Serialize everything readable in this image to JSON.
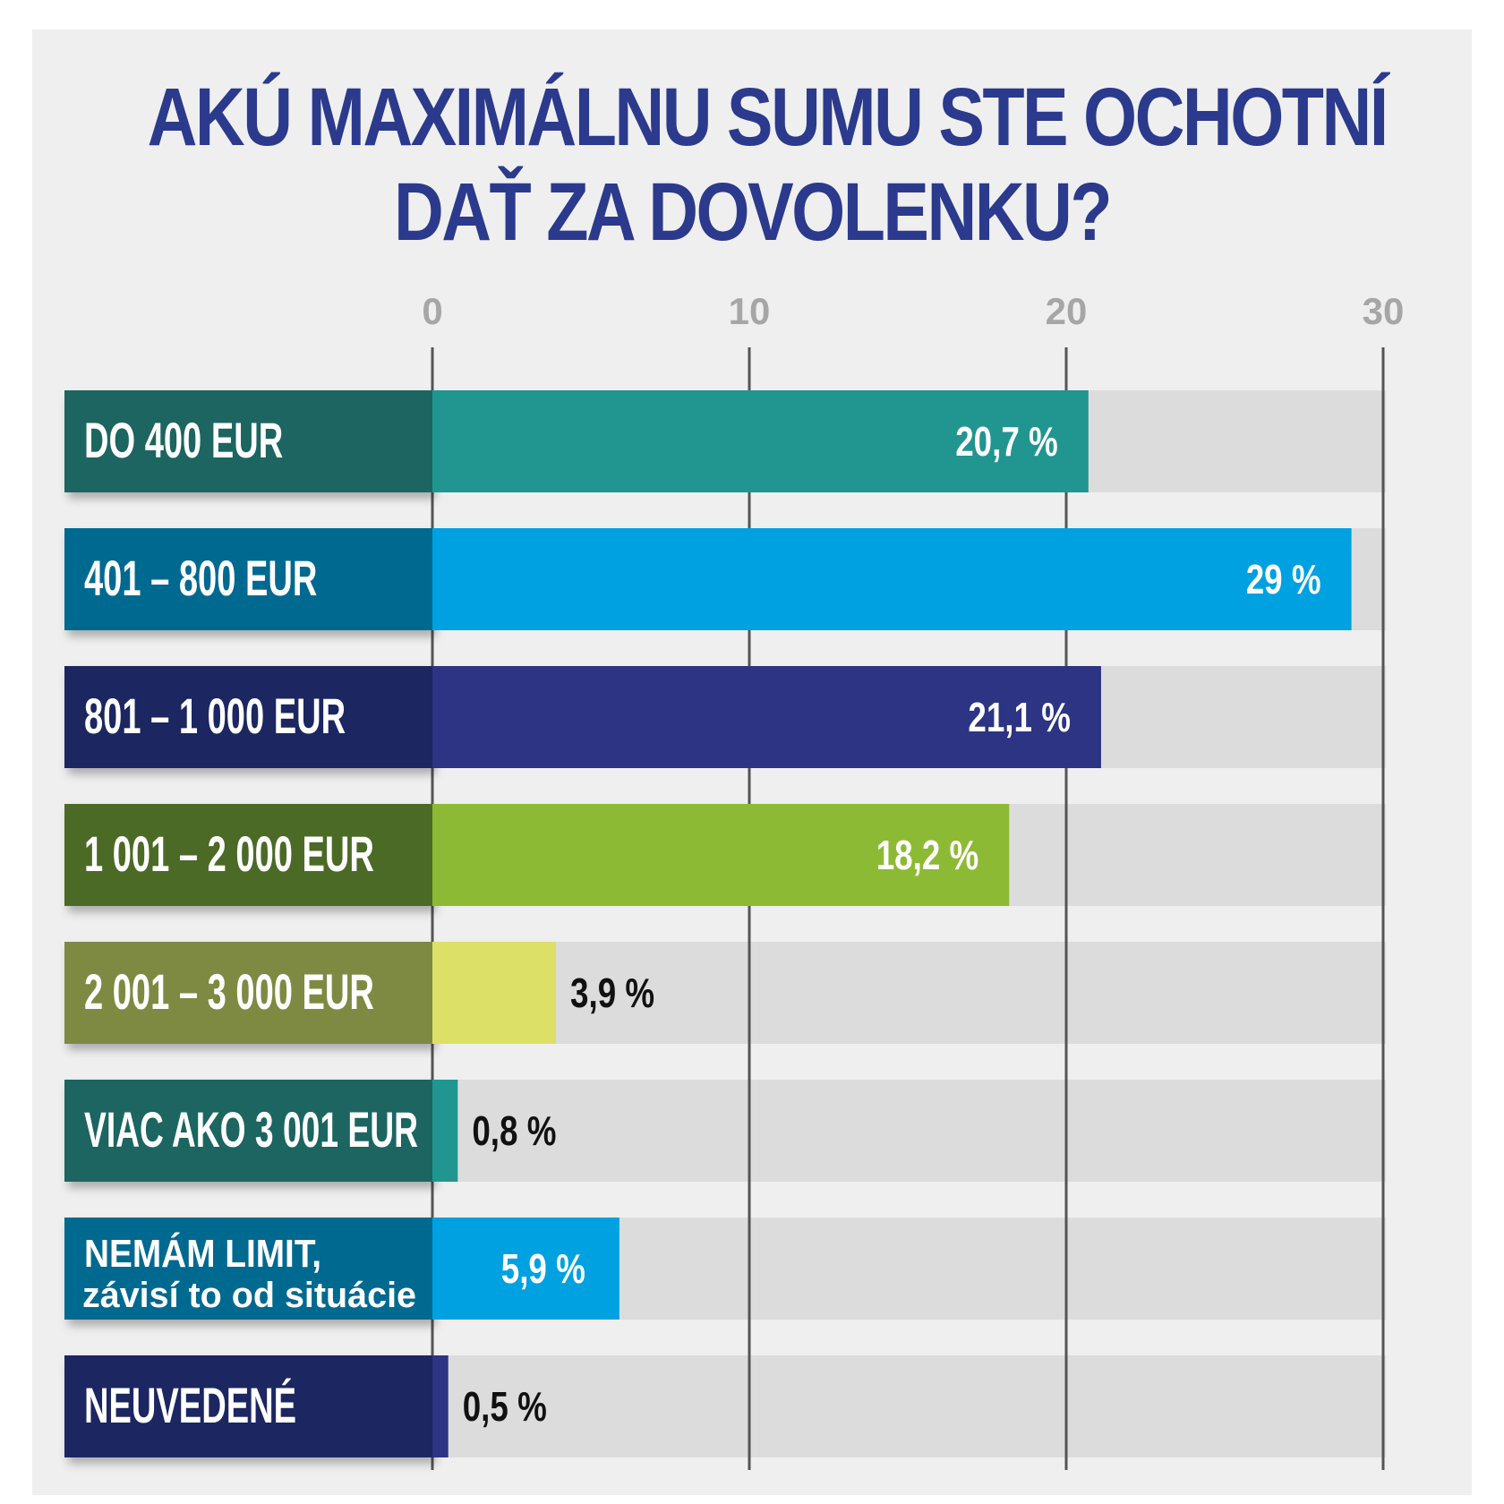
{
  "chart_data": {
    "type": "bar",
    "orientation": "horizontal",
    "title": "AKÚ MAXIMÁLNU SUMU STE OCHOTNÍ DAŤ ZA DOVOLENKU?",
    "title_lines": [
      "AKÚ MAXIMÁLNU SUMU STE OCHOTNÍ",
      "DAŤ ZA DOVOLENKU?"
    ],
    "xlim": [
      0,
      30
    ],
    "ticks": [
      "0",
      "10",
      "20",
      "30"
    ],
    "tick_values": [
      0,
      10,
      20,
      30
    ],
    "grid": true,
    "categories": [
      {
        "label": "DO 400 EUR",
        "sublabel": "",
        "value": 20.7,
        "value_label": "20,7  %",
        "label_color": "#1b6561",
        "bar_color": "#21958f",
        "value_color": "#ffffff",
        "value_inside": true
      },
      {
        "label": "401 – 800 EUR",
        "sublabel": "",
        "value": 29,
        "value_label": "29 %",
        "label_color": "#006990",
        "bar_color": "#00a1e0",
        "value_color": "#ffffff",
        "value_inside": true
      },
      {
        "label": "801 – 1 000 EUR",
        "sublabel": "",
        "value": 21.1,
        "value_label": "21,1 %",
        "label_color": "#1e2560",
        "bar_color": "#2c3483",
        "value_color": "#ffffff",
        "value_inside": true
      },
      {
        "label": "1 001 – 2 000 EUR",
        "sublabel": "",
        "value": 18.2,
        "value_label": "18,2 %",
        "label_color": "#4b6b25",
        "bar_color": "#8dba35",
        "value_color": "#ffffff",
        "value_inside": true
      },
      {
        "label": "2 001 – 3 000 EUR",
        "sublabel": "",
        "value": 3.9,
        "value_label": "3,9 %",
        "label_color": "#7e8a43",
        "bar_color": "#dce067",
        "value_color": "#111111",
        "value_inside": false
      },
      {
        "label": "VIAC AKO 3 001 EUR",
        "sublabel": "",
        "value": 0.8,
        "value_label": "0,8 %",
        "label_color": "#1b6561",
        "bar_color": "#21958f",
        "value_color": "#111111",
        "value_inside": false
      },
      {
        "label": "NEMÁM LIMIT,",
        "sublabel": "závisí to od situácie",
        "value": 5.9,
        "value_label": "5,9 %",
        "label_color": "#006990",
        "bar_color": "#00a1e0",
        "value_color": "#ffffff",
        "value_inside": true
      },
      {
        "label": "NEUVEDENÉ",
        "sublabel": "",
        "value": 0.5,
        "value_label": "0,5 %",
        "label_color": "#1e2560",
        "bar_color": "#2c3483",
        "value_color": "#111111",
        "value_inside": false
      }
    ],
    "track_color": "#dcdcdc",
    "grid_color": "#555555",
    "tick_color": "#a6a6a6",
    "title_color": "#2b3a8c"
  }
}
